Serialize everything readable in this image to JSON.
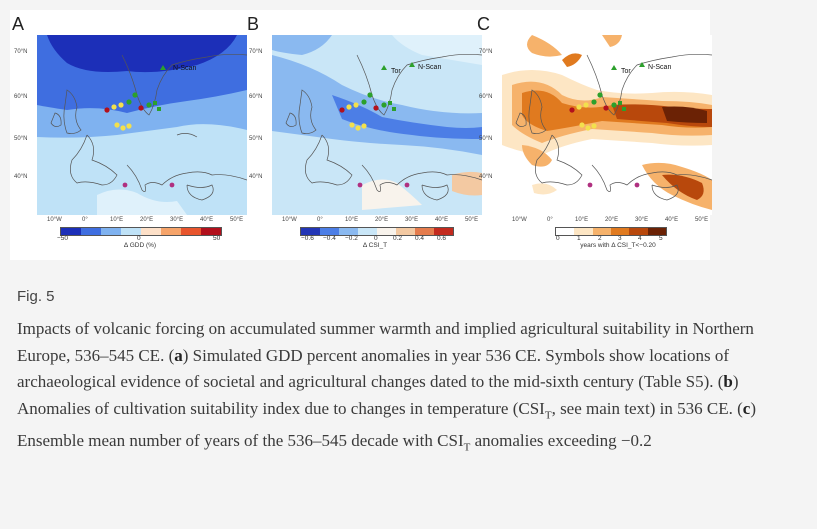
{
  "figure": {
    "panels": [
      {
        "label": "A",
        "lat_labels": [
          "70°N",
          "60°N",
          "50°N",
          "40°N"
        ],
        "lon_labels": [
          "10°W",
          "0°",
          "10°E",
          "20°E",
          "30°E",
          "40°E",
          "50°E"
        ],
        "map_labels": [
          "N-Scan"
        ],
        "colorbar": {
          "ticks": [
            "−50",
            "0",
            "50"
          ],
          "title": "Δ GDD (%)"
        }
      },
      {
        "label": "B",
        "lat_labels": [
          "70°N",
          "60°N",
          "50°N",
          "40°N"
        ],
        "lon_labels": [
          "10°W",
          "0°",
          "10°E",
          "20°E",
          "30°E",
          "40°E",
          "50°E"
        ],
        "map_labels": [
          "Tor",
          "N-Scan"
        ],
        "colorbar": {
          "ticks": [
            "−0.6",
            "−0.4",
            "−0.2",
            "0",
            "0.2",
            "0.4",
            "0.6"
          ],
          "title": "Δ CSI_T"
        }
      },
      {
        "label": "C",
        "lat_labels": [
          "70°N",
          "60°N",
          "50°N",
          "40°N"
        ],
        "lon_labels": [
          "10°W",
          "0°",
          "10°E",
          "20°E",
          "30°E",
          "40°E",
          "50°E"
        ],
        "map_labels": [
          "Tor",
          "N-Scan"
        ],
        "colorbar": {
          "ticks": [
            "0",
            "1",
            "2",
            "3",
            "4",
            "5"
          ],
          "title": "years with Δ CSI_T<−0.20"
        }
      }
    ]
  },
  "caption": {
    "fig_label": "Fig. 5",
    "s1": "Impacts of volcanic forcing on accumulated summer warmth and implied agricultural suitability in Northern Europe, 536–545 CE. (",
    "a": "a",
    "s2": ") Simulated GDD percent anomalies in year 536 CE. Symbols show locations of archaeological evidence of societal and agricultural changes dated to the mid-sixth century (Table S5). (",
    "b": "b",
    "s3": ") Anomalies of cultivation suitability index due to changes in temperature (CSI",
    "sub1": "T",
    "s4": ", see main text) in 536 CE. (",
    "c": "c",
    "s5": ") Ensemble mean number of years of the 536–545 decade with CSI",
    "sub2": "T",
    "s6": " anomalies exceeding −0.2"
  },
  "colors": {
    "panel_a": [
      "#1c2fb8",
      "#3f6ee0",
      "#7fb2f0",
      "#bfe2f7",
      "#fde0c8",
      "#f6a46a",
      "#e8552d",
      "#b2101c"
    ],
    "panel_b": [
      "#2336b6",
      "#4c7ee6",
      "#8ab9f0",
      "#c9e6f7",
      "#f8f3ec",
      "#f3c9a2",
      "#e57c4d",
      "#c32a1e"
    ],
    "panel_c": [
      "#ffffff",
      "#fde6c4",
      "#f6b26b",
      "#e07a1f",
      "#b8480c",
      "#6b2205"
    ]
  }
}
